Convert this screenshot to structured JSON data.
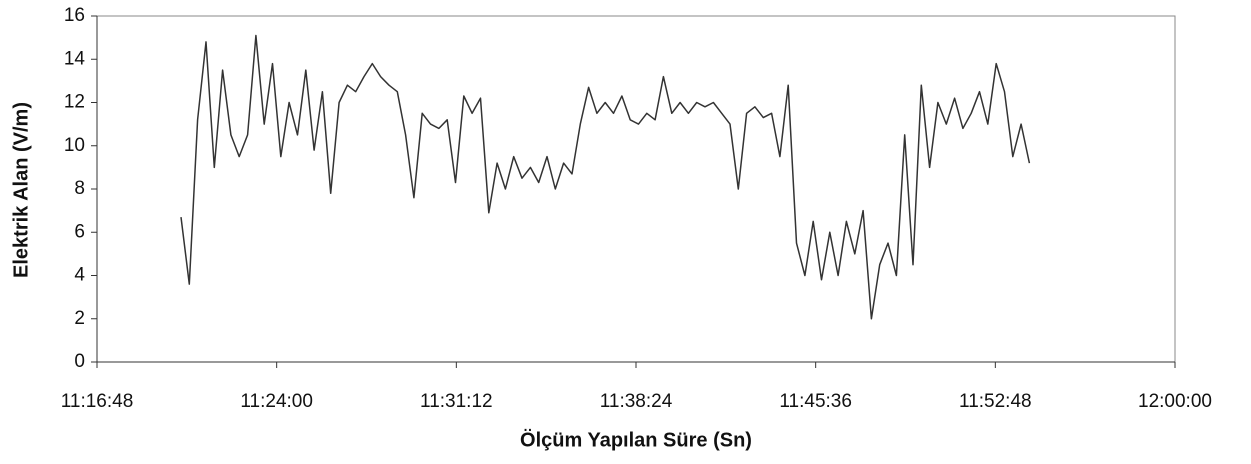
{
  "chart_data": {
    "type": "line",
    "xlabel": "Ölçüm Yapılan Süre (Sn)",
    "ylabel": "Elektrik Alan (V/m)",
    "color": "#333333",
    "x": [
      "11:20:10",
      "11:20:30",
      "11:20:50",
      "11:21:10",
      "11:21:30",
      "11:21:50",
      "11:22:10",
      "11:22:30",
      "11:22:50",
      "11:23:10",
      "11:23:30",
      "11:23:50",
      "11:24:10",
      "11:24:30",
      "11:24:50",
      "11:25:10",
      "11:25:30",
      "11:25:50",
      "11:26:10",
      "11:26:30",
      "11:26:50",
      "11:27:10",
      "11:27:30",
      "11:27:50",
      "11:28:10",
      "11:28:30",
      "11:28:50",
      "11:29:10",
      "11:29:30",
      "11:29:50",
      "11:30:10",
      "11:30:30",
      "11:30:50",
      "11:31:10",
      "11:31:30",
      "11:31:50",
      "11:32:10",
      "11:32:30",
      "11:32:50",
      "11:33:10",
      "11:33:30",
      "11:33:50",
      "11:34:10",
      "11:34:30",
      "11:34:50",
      "11:35:10",
      "11:35:30",
      "11:35:50",
      "11:36:10",
      "11:36:30",
      "11:36:50",
      "11:37:10",
      "11:37:30",
      "11:37:50",
      "11:38:10",
      "11:38:30",
      "11:38:50",
      "11:39:10",
      "11:39:30",
      "11:39:50",
      "11:40:10",
      "11:40:30",
      "11:40:50",
      "11:41:10",
      "11:41:30",
      "11:41:50",
      "11:42:10",
      "11:42:30",
      "11:42:50",
      "11:43:10",
      "11:43:30",
      "11:43:50",
      "11:44:10",
      "11:44:30",
      "11:44:50",
      "11:45:10",
      "11:45:30",
      "11:45:50",
      "11:46:10",
      "11:46:30",
      "11:46:50",
      "11:47:10",
      "11:47:30",
      "11:47:50",
      "11:48:10",
      "11:48:30",
      "11:48:50",
      "11:49:10",
      "11:49:30",
      "11:49:50",
      "11:50:10",
      "11:50:30",
      "11:50:50",
      "11:51:10",
      "11:51:30",
      "11:51:50",
      "11:52:10",
      "11:52:30",
      "11:52:50",
      "11:53:10",
      "11:53:30",
      "11:53:50",
      "11:54:10"
    ],
    "values": [
      6.7,
      3.6,
      11.2,
      14.8,
      9.0,
      13.5,
      10.5,
      9.5,
      10.5,
      15.1,
      11.0,
      13.8,
      9.5,
      12.0,
      10.5,
      13.5,
      9.8,
      12.5,
      7.8,
      12.0,
      12.8,
      12.5,
      13.2,
      13.8,
      13.2,
      12.8,
      12.5,
      10.5,
      7.6,
      11.5,
      11.0,
      10.8,
      11.2,
      8.3,
      12.3,
      11.5,
      12.2,
      6.9,
      9.2,
      8.0,
      9.5,
      8.5,
      9.0,
      8.3,
      9.5,
      8.0,
      9.2,
      8.7,
      11.0,
      12.7,
      11.5,
      12.0,
      11.5,
      12.3,
      11.2,
      11.0,
      11.5,
      11.2,
      13.2,
      11.5,
      12.0,
      11.5,
      12.0,
      11.8,
      12.0,
      11.5,
      11.0,
      8.0,
      11.5,
      11.8,
      11.3,
      11.5,
      9.5,
      12.8,
      5.5,
      4.0,
      6.5,
      3.8,
      6.0,
      4.0,
      6.5,
      5.0,
      7.0,
      2.0,
      4.5,
      5.5,
      4.0,
      10.5,
      4.5,
      12.8,
      9.0,
      12.0,
      11.0,
      12.2,
      10.8,
      11.5,
      12.5,
      11.0,
      13.8,
      12.5,
      9.5,
      11.0,
      9.2
    ],
    "xlim": [
      "11:16:48",
      "12:00:00"
    ],
    "xticks": [
      "11:16:48",
      "11:24:00",
      "11:31:12",
      "11:38:24",
      "11:45:36",
      "11:52:48",
      "12:00:00"
    ],
    "ylim": [
      0,
      16
    ],
    "yticks": [
      0,
      2,
      4,
      6,
      8,
      10,
      12,
      14,
      16
    ]
  }
}
